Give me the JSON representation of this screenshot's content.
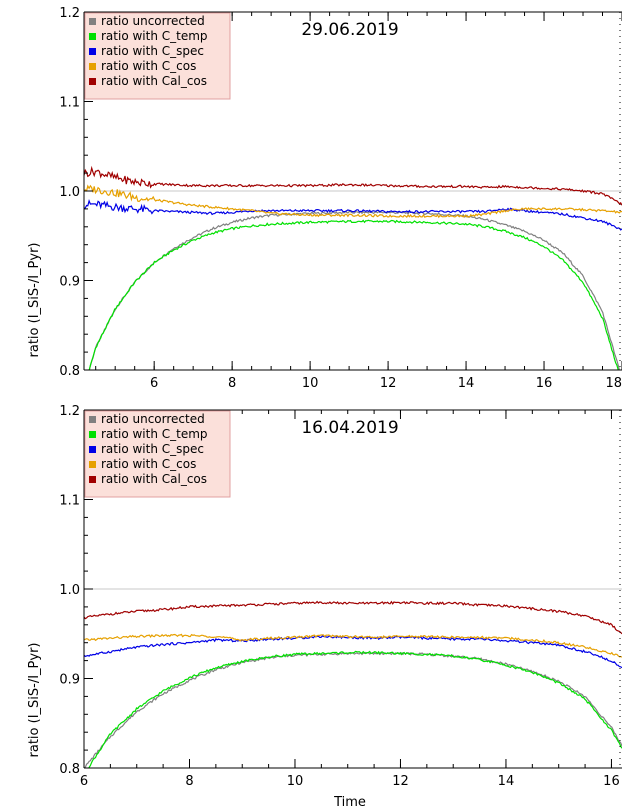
{
  "chart_data": [
    {
      "type": "line",
      "title": "29.06.2019",
      "xlabel": "",
      "ylabel": "ratio  (I_SiS-/I_Pyr)",
      "xlim": [
        4.2,
        18
      ],
      "ylim": [
        0.8,
        1.2
      ],
      "xticks": [
        6,
        8,
        10,
        12,
        14,
        16,
        18
      ],
      "yticks": [
        0.8,
        0.9,
        1.0,
        1.1,
        1.2
      ],
      "ytick_labels": [
        "0.8",
        "0.9",
        "1.0",
        "1.1",
        "1.2"
      ],
      "reference_line": 1.0,
      "legend_position": "top-left",
      "x": [
        4.2,
        4.5,
        5,
        5.5,
        6,
        6.5,
        7,
        7.5,
        8,
        8.5,
        9,
        10,
        11,
        12,
        13,
        14,
        14.5,
        15,
        15.5,
        16,
        16.5,
        17,
        17.5,
        18
      ],
      "series": [
        {
          "name": "ratio uncorrected",
          "color": "#808080",
          "values": [
            0.78,
            0.825,
            0.868,
            0.898,
            0.92,
            0.936,
            0.948,
            0.958,
            0.965,
            0.97,
            0.973,
            0.975,
            0.976,
            0.976,
            0.975,
            0.972,
            0.968,
            0.962,
            0.955,
            0.945,
            0.93,
            0.905,
            0.865,
            0.79
          ]
        },
        {
          "name": "ratio with C_temp",
          "color": "#00e000",
          "values": [
            0.78,
            0.825,
            0.868,
            0.898,
            0.92,
            0.934,
            0.945,
            0.953,
            0.958,
            0.961,
            0.963,
            0.965,
            0.966,
            0.966,
            0.965,
            0.963,
            0.96,
            0.955,
            0.948,
            0.938,
            0.922,
            0.898,
            0.858,
            0.785
          ]
        },
        {
          "name": "ratio with C_spec",
          "color": "#0000e6",
          "values": [
            0.985,
            0.985,
            0.982,
            0.98,
            0.978,
            0.977,
            0.976,
            0.975,
            0.976,
            0.978,
            0.978,
            0.978,
            0.978,
            0.977,
            0.977,
            0.977,
            0.977,
            0.98,
            0.978,
            0.976,
            0.974,
            0.97,
            0.966,
            0.957
          ]
        },
        {
          "name": "ratio with C_cos",
          "color": "#e6a000",
          "values": [
            1.002,
            1.002,
            0.998,
            0.993,
            0.99,
            0.987,
            0.984,
            0.982,
            0.98,
            0.978,
            0.975,
            0.973,
            0.973,
            0.972,
            0.972,
            0.972,
            0.974,
            0.978,
            0.98,
            0.98,
            0.98,
            0.979,
            0.978,
            0.976
          ]
        },
        {
          "name": "ratio with Cal_cos",
          "color": "#a00000",
          "values": [
            1.02,
            1.022,
            1.015,
            1.01,
            1.008,
            1.007,
            1.006,
            1.006,
            1.006,
            1.006,
            1.006,
            1.006,
            1.007,
            1.006,
            1.005,
            1.005,
            1.004,
            1.005,
            1.004,
            1.003,
            1.002,
            1.0,
            0.997,
            0.985
          ]
        }
      ]
    },
    {
      "type": "line",
      "title": "16.04.2019",
      "xlabel": "Time",
      "ylabel": "ratio  (I_SiS-/I_Pyr)",
      "xlim": [
        6,
        16.2
      ],
      "ylim": [
        0.8,
        1.2
      ],
      "xticks": [
        6,
        8,
        10,
        12,
        14,
        16
      ],
      "yticks": [
        0.8,
        0.9,
        1.0,
        1.1,
        1.2
      ],
      "ytick_labels": [
        "0.8",
        "0.9",
        "1.0",
        "1.1",
        "1.2"
      ],
      "reference_line": 1.0,
      "legend_position": "top-left",
      "x": [
        6,
        6.5,
        7,
        7.5,
        8,
        8.5,
        9,
        9.5,
        10,
        10.5,
        11,
        11.5,
        12,
        12.5,
        13,
        13.5,
        14,
        14.5,
        15,
        15.5,
        16,
        16.2
      ],
      "series": [
        {
          "name": "ratio uncorrected",
          "color": "#808080",
          "values": [
            0.8,
            0.835,
            0.863,
            0.883,
            0.898,
            0.91,
            0.918,
            0.923,
            0.926,
            0.927,
            0.928,
            0.928,
            0.928,
            0.927,
            0.925,
            0.922,
            0.916,
            0.908,
            0.897,
            0.88,
            0.845,
            0.825
          ]
        },
        {
          "name": "ratio with C_temp",
          "color": "#00e000",
          "values": [
            0.793,
            0.838,
            0.866,
            0.886,
            0.901,
            0.912,
            0.919,
            0.924,
            0.927,
            0.928,
            0.929,
            0.929,
            0.928,
            0.927,
            0.925,
            0.921,
            0.915,
            0.907,
            0.895,
            0.877,
            0.842,
            0.822
          ]
        },
        {
          "name": "ratio with C_spec",
          "color": "#0000e6",
          "values": [
            0.925,
            0.93,
            0.935,
            0.938,
            0.94,
            0.943,
            0.942,
            0.944,
            0.945,
            0.947,
            0.946,
            0.945,
            0.946,
            0.945,
            0.944,
            0.944,
            0.942,
            0.94,
            0.937,
            0.93,
            0.92,
            0.912
          ]
        },
        {
          "name": "ratio with C_cos",
          "color": "#e6a000",
          "values": [
            0.943,
            0.945,
            0.947,
            0.948,
            0.948,
            0.947,
            0.943,
            0.945,
            0.946,
            0.948,
            0.947,
            0.946,
            0.947,
            0.947,
            0.946,
            0.946,
            0.945,
            0.943,
            0.94,
            0.935,
            0.928,
            0.924
          ]
        },
        {
          "name": "ratio with Cal_cos",
          "color": "#a00000",
          "values": [
            0.968,
            0.972,
            0.975,
            0.977,
            0.98,
            0.981,
            0.982,
            0.983,
            0.984,
            0.985,
            0.984,
            0.984,
            0.985,
            0.984,
            0.984,
            0.982,
            0.981,
            0.978,
            0.975,
            0.97,
            0.96,
            0.95
          ]
        }
      ]
    }
  ]
}
